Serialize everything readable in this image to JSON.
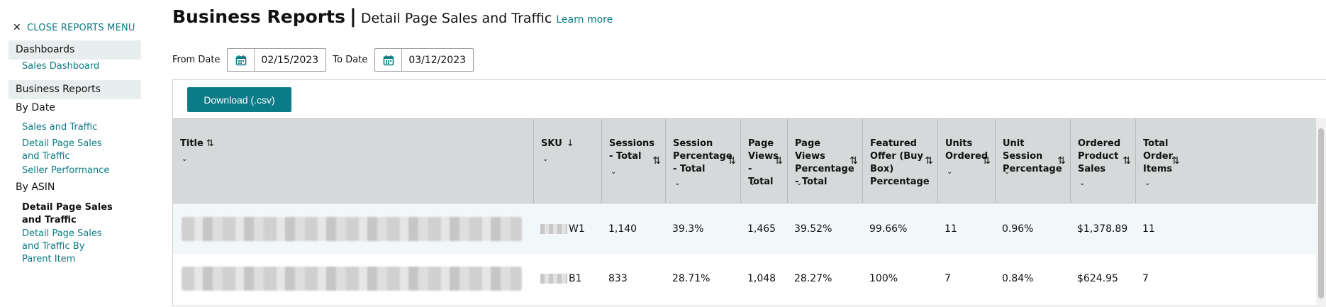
{
  "sidebar": {
    "close_label": "CLOSE REPORTS MENU",
    "sections": [
      {
        "label": "Dashboards"
      },
      {
        "label": "Business Reports"
      }
    ],
    "links": {
      "sales_dashboard": "Sales Dashboard",
      "by_date": "By Date",
      "sales_and_traffic": "Sales and Traffic",
      "detail_page_sales_traffic": "Detail Page Sales and Traffic",
      "seller_performance": "Seller Performance",
      "by_asin": "By ASIN",
      "asin_detail_page": "Detail Page Sales and Traffic",
      "asin_detail_page_parent": "Detail Page Sales and Traffic By Parent Item"
    }
  },
  "header": {
    "title": "Business Reports",
    "separator": "|",
    "subtitle": "Detail Page Sales and Traffic",
    "learn_more": "Learn more"
  },
  "filters": {
    "from_label": "From Date",
    "from_value": "02/15/2023",
    "to_label": "To Date",
    "to_value": "03/12/2023"
  },
  "download_label": "Download (.csv)",
  "table": {
    "columns": [
      {
        "label": "Title"
      },
      {
        "label": "SKU"
      },
      {
        "label": "Sessions - Total"
      },
      {
        "label": "Session Percentage - Total"
      },
      {
        "label": "Page Views - Total"
      },
      {
        "label": "Page Views Percentage - Total"
      },
      {
        "label": "Featured Offer (Buy Box) Percentage"
      },
      {
        "label": "Units Ordered"
      },
      {
        "label": "Unit Session Percentage"
      },
      {
        "label": "Ordered Product Sales"
      },
      {
        "label": "Total Order Items"
      }
    ],
    "rows": [
      {
        "sku_suffix": "W1",
        "sessions": "1,140",
        "session_pct": "39.3%",
        "page_views": "1,465",
        "page_views_pct": "39.52%",
        "buy_box_pct": "99.66%",
        "units": "11",
        "unit_session_pct": "0.96%",
        "sales": "$1,378.89",
        "order_items": "11"
      },
      {
        "sku_suffix": "B1",
        "sessions": "833",
        "session_pct": "28.71%",
        "page_views": "1,048",
        "page_views_pct": "28.27%",
        "buy_box_pct": "100%",
        "units": "7",
        "unit_session_pct": "0.84%",
        "sales": "$624.95",
        "order_items": "7"
      }
    ]
  },
  "colors": {
    "accent": "#0a7b83",
    "button": "#0b7b87",
    "header_bg": "#d5d9d9",
    "row_alt": "#f2f7fa",
    "side_bg": "#e8eded"
  }
}
